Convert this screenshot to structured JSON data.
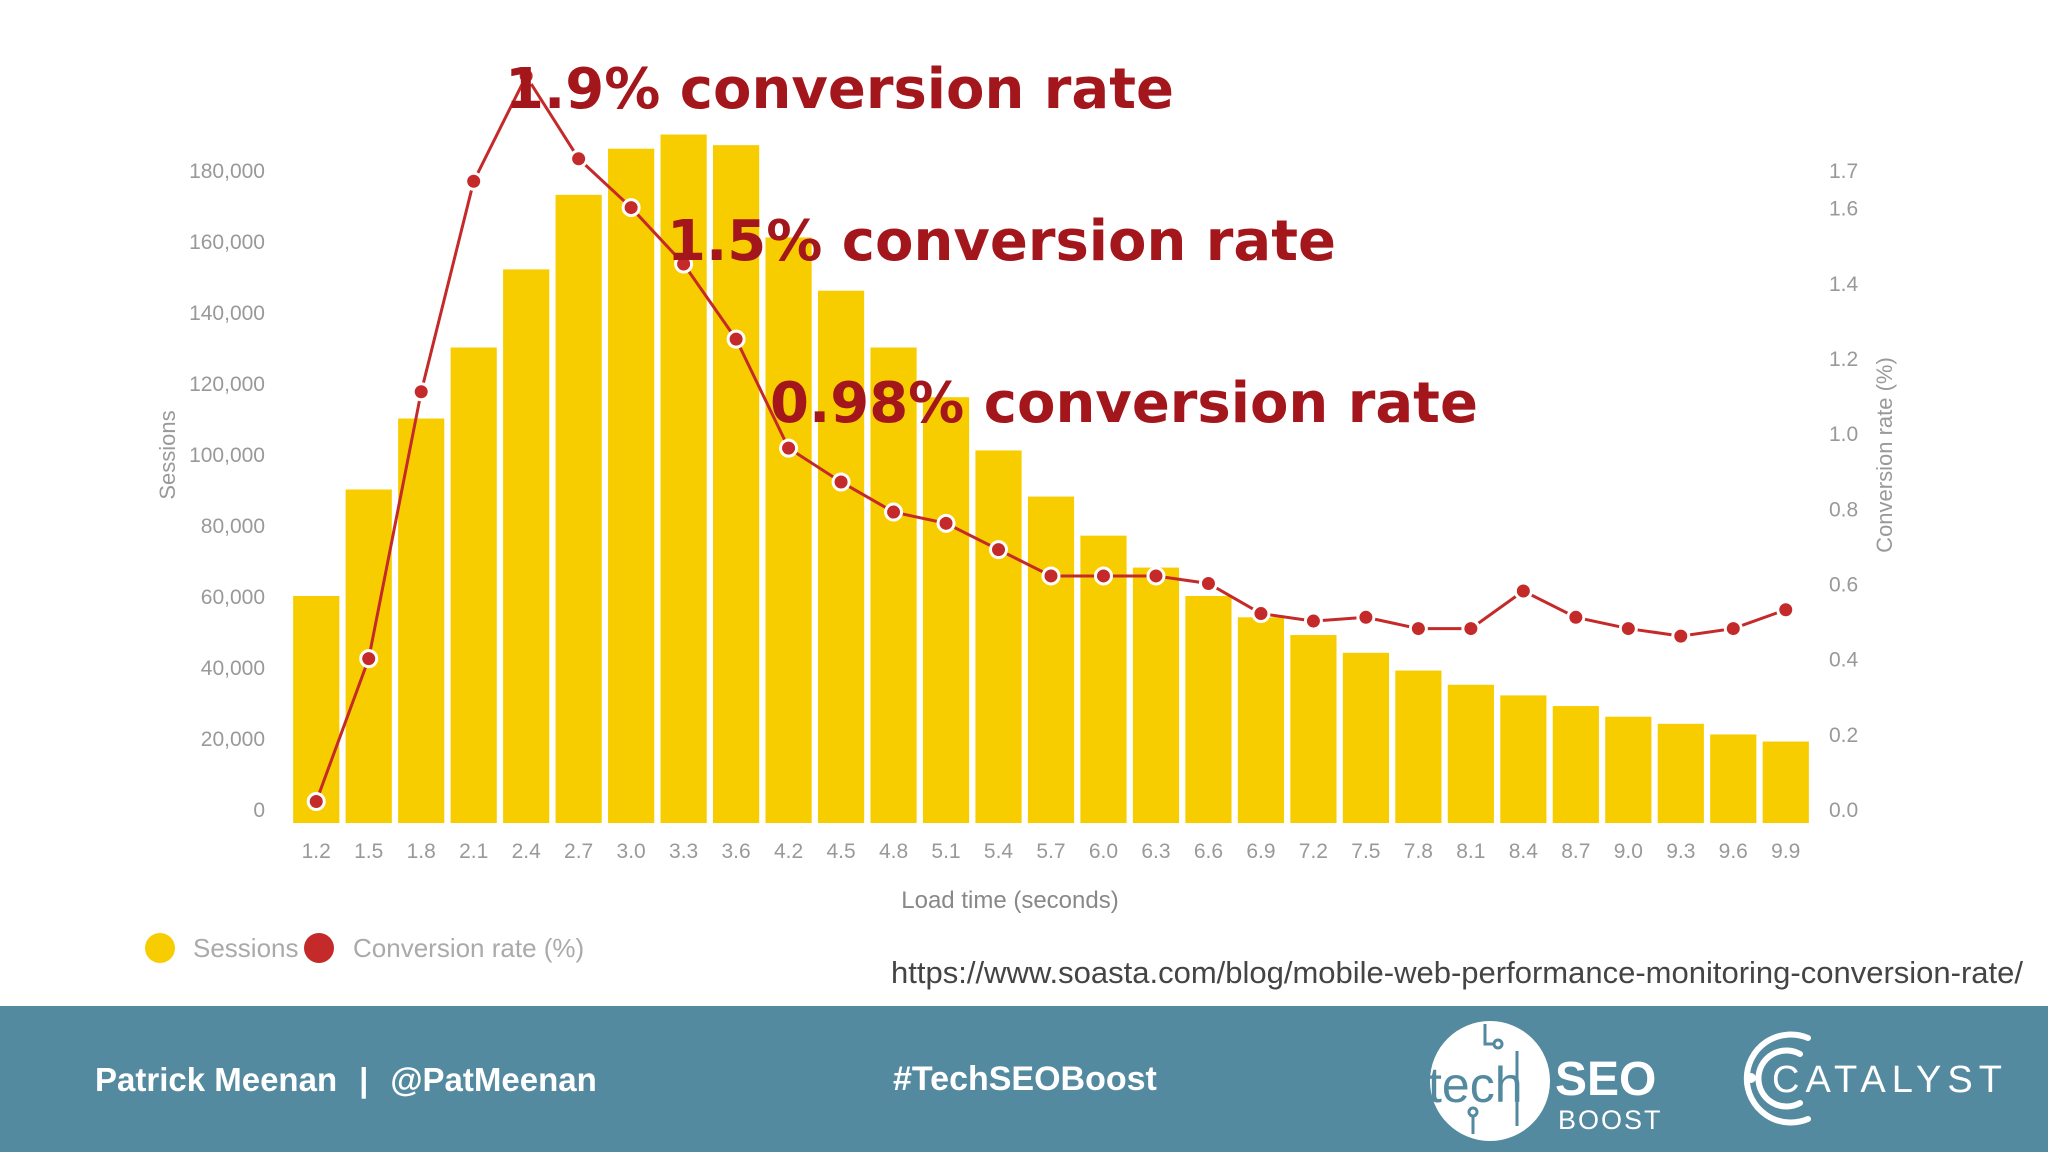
{
  "chart_data": {
    "type": "bar",
    "xlabel": "Load time (seconds)",
    "ylabel": "Sessions",
    "y2label": "Conversion rate (%)",
    "ylim": [
      0,
      180000
    ],
    "y2lim": [
      0,
      1.7
    ],
    "categories": [
      "1.2",
      "1.5",
      "1.8",
      "2.1",
      "2.4",
      "2.7",
      "3.0",
      "3.3",
      "3.6",
      "4.2",
      "4.5",
      "4.8",
      "5.1",
      "5.4",
      "5.7",
      "6.0",
      "6.3",
      "6.6",
      "6.9",
      "7.2",
      "7.5",
      "7.8",
      "8.1",
      "8.4",
      "8.7",
      "9.0",
      "9.3",
      "9.6",
      "9.9"
    ],
    "y_ticks": [
      "0",
      "20,000",
      "40,000",
      "60,000",
      "80,000",
      "100,000",
      "120,000",
      "140,000",
      "160,000",
      "180,000"
    ],
    "y_tick_values": [
      0,
      20000,
      40000,
      60000,
      80000,
      100000,
      120000,
      140000,
      160000,
      180000
    ],
    "y2_ticks": [
      "0.0",
      "0.2",
      "0.4",
      "0.6",
      "0.8",
      "1.0",
      "1.2",
      "1.4",
      "1.6",
      "1.7"
    ],
    "y2_tick_values": [
      0,
      0.2,
      0.4,
      0.6,
      0.8,
      1.0,
      1.2,
      1.4,
      1.6,
      1.7
    ],
    "series": [
      {
        "name": "Sessions",
        "type": "bar",
        "color": "#f7cd00",
        "values": [
          60000,
          90000,
          110000,
          130000,
          152000,
          173000,
          186000,
          190000,
          187000,
          161000,
          146000,
          130000,
          116000,
          101000,
          88000,
          77000,
          68000,
          60000,
          54000,
          49000,
          44000,
          39000,
          35000,
          32000,
          29000,
          26000,
          24000,
          21000,
          19000
        ]
      },
      {
        "name": "Conversion rate (%)",
        "type": "line",
        "color": "#c42a2a",
        "values": [
          0.02,
          0.4,
          1.11,
          1.67,
          1.95,
          1.73,
          1.6,
          1.45,
          1.25,
          0.96,
          0.87,
          0.79,
          0.76,
          0.69,
          0.62,
          0.62,
          0.62,
          0.6,
          0.52,
          0.5,
          0.51,
          0.48,
          0.48,
          0.58,
          0.51,
          0.48,
          0.46,
          0.48,
          0.53
        ]
      }
    ],
    "annotations": [
      {
        "text": "1.9% conversion rate"
      },
      {
        "text": "1.5% conversion rate"
      },
      {
        "text": "0.98% conversion rate"
      }
    ],
    "legend": "bottom-left",
    "grid": false
  },
  "source_url": "https://www.soasta.com/blog/mobile-web-performance-monitoring-conversion-rate/",
  "footer": {
    "presenter": "Patrick Meenan",
    "separator": "|",
    "handle": "@PatMeenan",
    "hashtag": "#TechSEOBoost",
    "logo_techseo": {
      "part1": "tech",
      "part2": "SEO",
      "part3": "BOOST"
    },
    "logo_catalyst": {
      "text": "CATALYST"
    }
  },
  "colors": {
    "bar": "#f7cd00",
    "line": "#c42a2a",
    "annotation": "#a3161c",
    "axis_text": "#999999",
    "footer_bg": "#538aa0"
  }
}
